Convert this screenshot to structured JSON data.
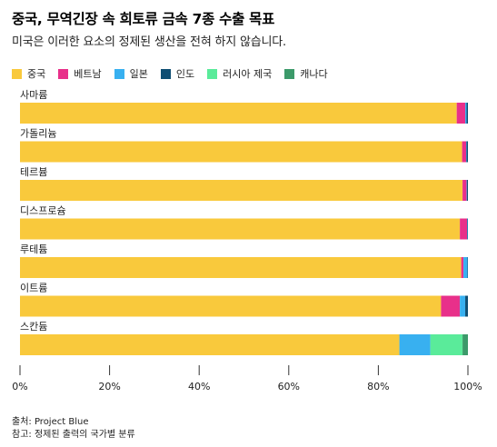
{
  "title": "중국, 무역긴장 속 희토류 금속 7종 수출 목표",
  "subtitle": "미국은 이러한 요소의 정제된 생산을 전혀 하지 않습니다.",
  "footer": {
    "source": "출처: Project Blue",
    "note": "참고: 정제된 출력의 국가별 분류"
  },
  "chart_data": {
    "type": "bar",
    "orientation": "horizontal",
    "stacked": true,
    "categories": [
      "사마륨",
      "가돌리늄",
      "테르븀",
      "디스프로슘",
      "루테튬",
      "이트륨",
      "스칸듐"
    ],
    "series": [
      {
        "name": "중국",
        "color": "#f9c93c",
        "values": [
          97.5,
          98.7,
          98.8,
          98.2,
          98.5,
          94.0,
          84.7
        ]
      },
      {
        "name": "베트남",
        "color": "#e8308a",
        "values": [
          1.9,
          0.9,
          0.9,
          1.6,
          0.5,
          4.2,
          0.0
        ]
      },
      {
        "name": "일본",
        "color": "#38b0f0",
        "values": [
          0.3,
          0.1,
          0.1,
          0.1,
          0.9,
          1.2,
          6.9
        ]
      },
      {
        "name": "인도",
        "color": "#0e4e73",
        "values": [
          0.3,
          0.3,
          0.2,
          0.1,
          0.1,
          0.6,
          0.0
        ]
      },
      {
        "name": "러시아 제국",
        "color": "#5aeb9a",
        "values": [
          0.0,
          0.0,
          0.0,
          0.0,
          0.0,
          0.0,
          7.2
        ]
      },
      {
        "name": "캐나다",
        "color": "#3c9a6a",
        "values": [
          0.0,
          0.0,
          0.0,
          0.0,
          0.0,
          0.0,
          1.2
        ]
      }
    ],
    "xlim": [
      0,
      100
    ],
    "xticks": [
      0,
      20,
      40,
      60,
      80,
      100
    ],
    "xtick_labels": [
      "0%",
      "20%",
      "40%",
      "60%",
      "80%",
      "100%"
    ],
    "legend_position": "top-left",
    "grid": false
  }
}
